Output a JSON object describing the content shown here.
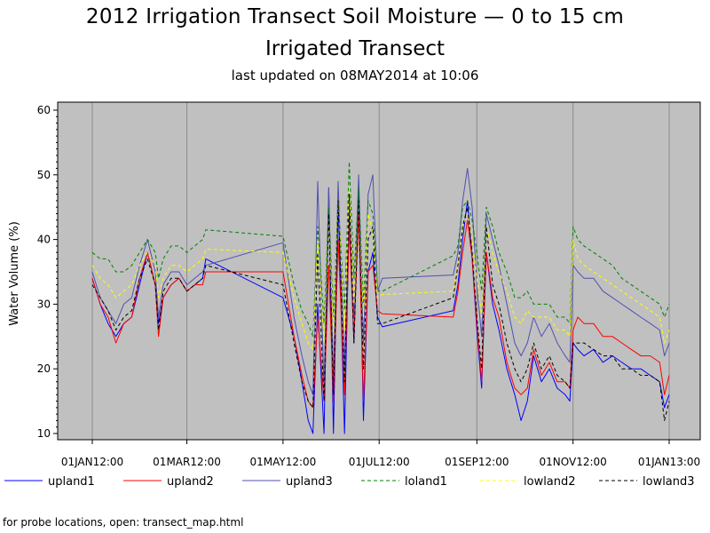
{
  "chart_data": {
    "type": "line",
    "title": "2012 Irrigation Transect Soil Moisture — 0 to 15 cm",
    "subtitle": "Irrigated Transect",
    "updated": "last updated on 08MAY2014 at 10:06",
    "xlabel": "",
    "ylabel": "Water Volume (%)",
    "ylim": [
      10,
      60
    ],
    "yticks": [
      10,
      20,
      30,
      40,
      50,
      60
    ],
    "xlim_days": [
      0,
      366
    ],
    "xticks": [
      {
        "label": "01JAN12:00",
        "day": 0
      },
      {
        "label": "01MAR12:00",
        "day": 60
      },
      {
        "label": "01MAY12:00",
        "day": 121
      },
      {
        "label": "01JUL12:00",
        "day": 182
      },
      {
        "label": "01SEP12:00",
        "day": 244
      },
      {
        "label": "01NOV12:00",
        "day": 305
      },
      {
        "label": "01JAN13:00",
        "day": 366
      }
    ],
    "background": "#c0c0c0",
    "grid": true,
    "legend_position": "bottom",
    "series": [
      {
        "name": "upland1",
        "color": "#0000ff",
        "dash": "solid",
        "days": [
          0,
          5,
          10,
          15,
          20,
          25,
          30,
          35,
          40,
          42,
          45,
          50,
          55,
          60,
          65,
          70,
          72,
          121,
          128,
          133,
          137,
          140,
          143,
          147,
          150,
          153,
          156,
          160,
          163,
          166,
          169,
          172,
          175,
          178,
          181,
          184,
          229,
          232,
          235,
          238,
          241,
          244,
          247,
          250,
          254,
          258,
          263,
          268,
          272,
          276,
          280,
          285,
          290,
          295,
          300,
          303,
          305,
          308,
          312,
          318,
          324,
          330,
          336,
          342,
          348,
          354,
          360,
          363,
          366
        ],
        "values": [
          34,
          30,
          27,
          25,
          27,
          28,
          33,
          38,
          33,
          27,
          31,
          33,
          34,
          32,
          33,
          34,
          37,
          31,
          25,
          18,
          12,
          10,
          30,
          10,
          48,
          10,
          46,
          10,
          44,
          24,
          49,
          12,
          35,
          38,
          28,
          26.5,
          29,
          33,
          40,
          46,
          37,
          26,
          17,
          38,
          30,
          26,
          20,
          16,
          12,
          15,
          22,
          18,
          20,
          17,
          16,
          15,
          24,
          23,
          22,
          23,
          21,
          22,
          21,
          20,
          20,
          19,
          18,
          14,
          16
        ]
      },
      {
        "name": "upland2",
        "color": "#ff0000",
        "dash": "solid",
        "days": [
          0,
          5,
          10,
          15,
          20,
          25,
          30,
          35,
          40,
          42,
          45,
          50,
          55,
          60,
          65,
          70,
          72,
          121,
          128,
          133,
          137,
          140,
          143,
          147,
          150,
          153,
          156,
          160,
          163,
          166,
          169,
          172,
          175,
          178,
          181,
          184,
          229,
          232,
          235,
          238,
          241,
          244,
          247,
          250,
          254,
          258,
          263,
          268,
          272,
          276,
          280,
          285,
          290,
          295,
          300,
          303,
          305,
          308,
          312,
          318,
          324,
          330,
          336,
          342,
          348,
          354,
          360,
          363,
          366
        ],
        "values": [
          34,
          30,
          28,
          24,
          27,
          28,
          34,
          38,
          33,
          25,
          31,
          33,
          34,
          32,
          33,
          33,
          35,
          35,
          25,
          19,
          15,
          14,
          28,
          15,
          36,
          15,
          40,
          16,
          42,
          25,
          44,
          15,
          35,
          36,
          29,
          28.5,
          28,
          32,
          38,
          43,
          37,
          27,
          18,
          38,
          31,
          28,
          21,
          17,
          16,
          17,
          23,
          19,
          21,
          18,
          18,
          17,
          26,
          28,
          27,
          27,
          25,
          25,
          24,
          23,
          22,
          22,
          21,
          16,
          19
        ]
      },
      {
        "name": "upland3",
        "color": "#5050b0",
        "dash": "solid",
        "days": [
          0,
          5,
          10,
          15,
          20,
          25,
          30,
          35,
          40,
          42,
          45,
          50,
          55,
          60,
          65,
          70,
          72,
          121,
          128,
          133,
          137,
          140,
          143,
          147,
          150,
          153,
          156,
          160,
          163,
          166,
          169,
          172,
          175,
          178,
          181,
          184,
          229,
          232,
          235,
          238,
          241,
          244,
          247,
          250,
          254,
          258,
          263,
          268,
          272,
          276,
          280,
          285,
          290,
          295,
          300,
          303,
          305,
          308,
          312,
          318,
          324,
          330,
          336,
          342,
          348,
          354,
          360,
          363,
          366
        ],
        "values": [
          35,
          31,
          29,
          27,
          30,
          31,
          36,
          40,
          35,
          28,
          33,
          35,
          35,
          33,
          34,
          35,
          36,
          39.5,
          28,
          22,
          18,
          16,
          49,
          17,
          48,
          18,
          49,
          20,
          47,
          28,
          50,
          24,
          47,
          50,
          32,
          34,
          34.5,
          38,
          46,
          51,
          45,
          33,
          25,
          44,
          40,
          36,
          30,
          24,
          22,
          24,
          28,
          25,
          27,
          24,
          22,
          21,
          36,
          35,
          34,
          34,
          32,
          31,
          30,
          29,
          28,
          27,
          26,
          22,
          24
        ]
      },
      {
        "name": "loland1",
        "color": "#008000",
        "dash": "dashed",
        "days": [
          0,
          5,
          10,
          15,
          20,
          25,
          30,
          35,
          40,
          42,
          45,
          50,
          55,
          60,
          65,
          70,
          72,
          121,
          128,
          133,
          137,
          140,
          143,
          147,
          150,
          153,
          156,
          160,
          163,
          166,
          169,
          172,
          175,
          178,
          181,
          184,
          229,
          232,
          235,
          238,
          241,
          244,
          247,
          250,
          254,
          258,
          263,
          268,
          272,
          276,
          280,
          285,
          290,
          295,
          300,
          303,
          305,
          308,
          312,
          318,
          324,
          330,
          336,
          342,
          348,
          354,
          360,
          363,
          366
        ],
        "values": [
          38,
          37,
          37,
          35,
          35,
          36,
          38,
          40,
          38,
          34,
          37,
          39,
          39,
          38,
          39,
          40,
          41.5,
          40.5,
          33,
          29,
          27,
          25,
          42,
          27,
          45,
          28,
          46,
          29,
          52,
          34,
          48,
          30,
          46,
          44,
          32,
          32,
          37.5,
          39,
          45,
          46,
          43,
          38,
          32,
          45,
          42,
          38,
          35,
          31,
          31,
          32,
          30,
          30,
          30,
          28,
          28,
          27,
          42,
          40,
          39,
          38,
          37,
          36,
          34,
          33,
          32,
          31,
          30,
          28,
          30
        ]
      },
      {
        "name": "lowland2",
        "color": "#ffff00",
        "dash": "dashed",
        "days": [
          0,
          5,
          10,
          15,
          20,
          25,
          30,
          35,
          40,
          42,
          45,
          50,
          55,
          60,
          65,
          70,
          72,
          121,
          128,
          133,
          137,
          140,
          143,
          147,
          150,
          153,
          156,
          160,
          163,
          166,
          169,
          172,
          175,
          178,
          181,
          184,
          229,
          232,
          235,
          238,
          241,
          244,
          247,
          250,
          254,
          258,
          263,
          268,
          272,
          276,
          280,
          285,
          290,
          295,
          300,
          303,
          305,
          308,
          312,
          318,
          324,
          330,
          336,
          342,
          348,
          354,
          360,
          363,
          366
        ],
        "values": [
          36,
          34,
          33,
          31,
          32,
          33,
          36,
          38,
          36,
          31,
          34,
          36,
          36,
          35,
          36,
          37,
          38.5,
          38,
          31,
          27,
          24,
          23,
          40,
          24,
          43,
          25,
          46,
          26,
          48,
          30,
          45,
          28,
          44,
          41,
          31,
          31.5,
          32,
          36,
          42,
          44,
          40,
          34,
          28,
          42,
          38,
          35,
          32,
          28,
          27,
          29,
          28,
          28,
          28,
          26,
          26,
          25,
          40,
          37,
          36,
          35,
          34,
          33,
          32,
          31,
          30,
          29,
          28,
          24,
          26
        ]
      },
      {
        "name": "lowland3",
        "color": "#000000",
        "dash": "dashed",
        "days": [
          0,
          5,
          10,
          15,
          20,
          25,
          30,
          35,
          40,
          42,
          45,
          50,
          55,
          60,
          65,
          70,
          72,
          121,
          128,
          133,
          137,
          140,
          143,
          147,
          150,
          153,
          156,
          160,
          163,
          166,
          169,
          172,
          175,
          178,
          181,
          184,
          229,
          232,
          235,
          238,
          241,
          244,
          247,
          250,
          254,
          258,
          263,
          268,
          272,
          276,
          280,
          285,
          290,
          295,
          300,
          303,
          305,
          308,
          312,
          318,
          324,
          330,
          336,
          342,
          348,
          354,
          360,
          363,
          366
        ],
        "values": [
          33,
          31,
          29,
          26,
          28,
          29,
          34,
          37,
          33,
          26,
          32,
          34,
          34,
          32,
          33,
          34,
          36,
          33,
          24,
          18,
          15,
          14,
          38,
          15,
          44,
          16,
          46,
          18,
          47,
          24,
          46,
          20,
          40,
          42,
          27,
          27,
          31,
          36,
          42,
          45,
          38,
          28,
          20,
          42,
          33,
          30,
          24,
          20,
          18,
          20,
          24,
          20,
          22,
          19,
          18,
          17,
          24,
          24,
          24,
          23,
          22,
          22,
          20,
          20,
          19,
          19,
          18,
          12,
          15
        ]
      }
    ]
  },
  "footer": "for probe locations, open: transect_map.html"
}
